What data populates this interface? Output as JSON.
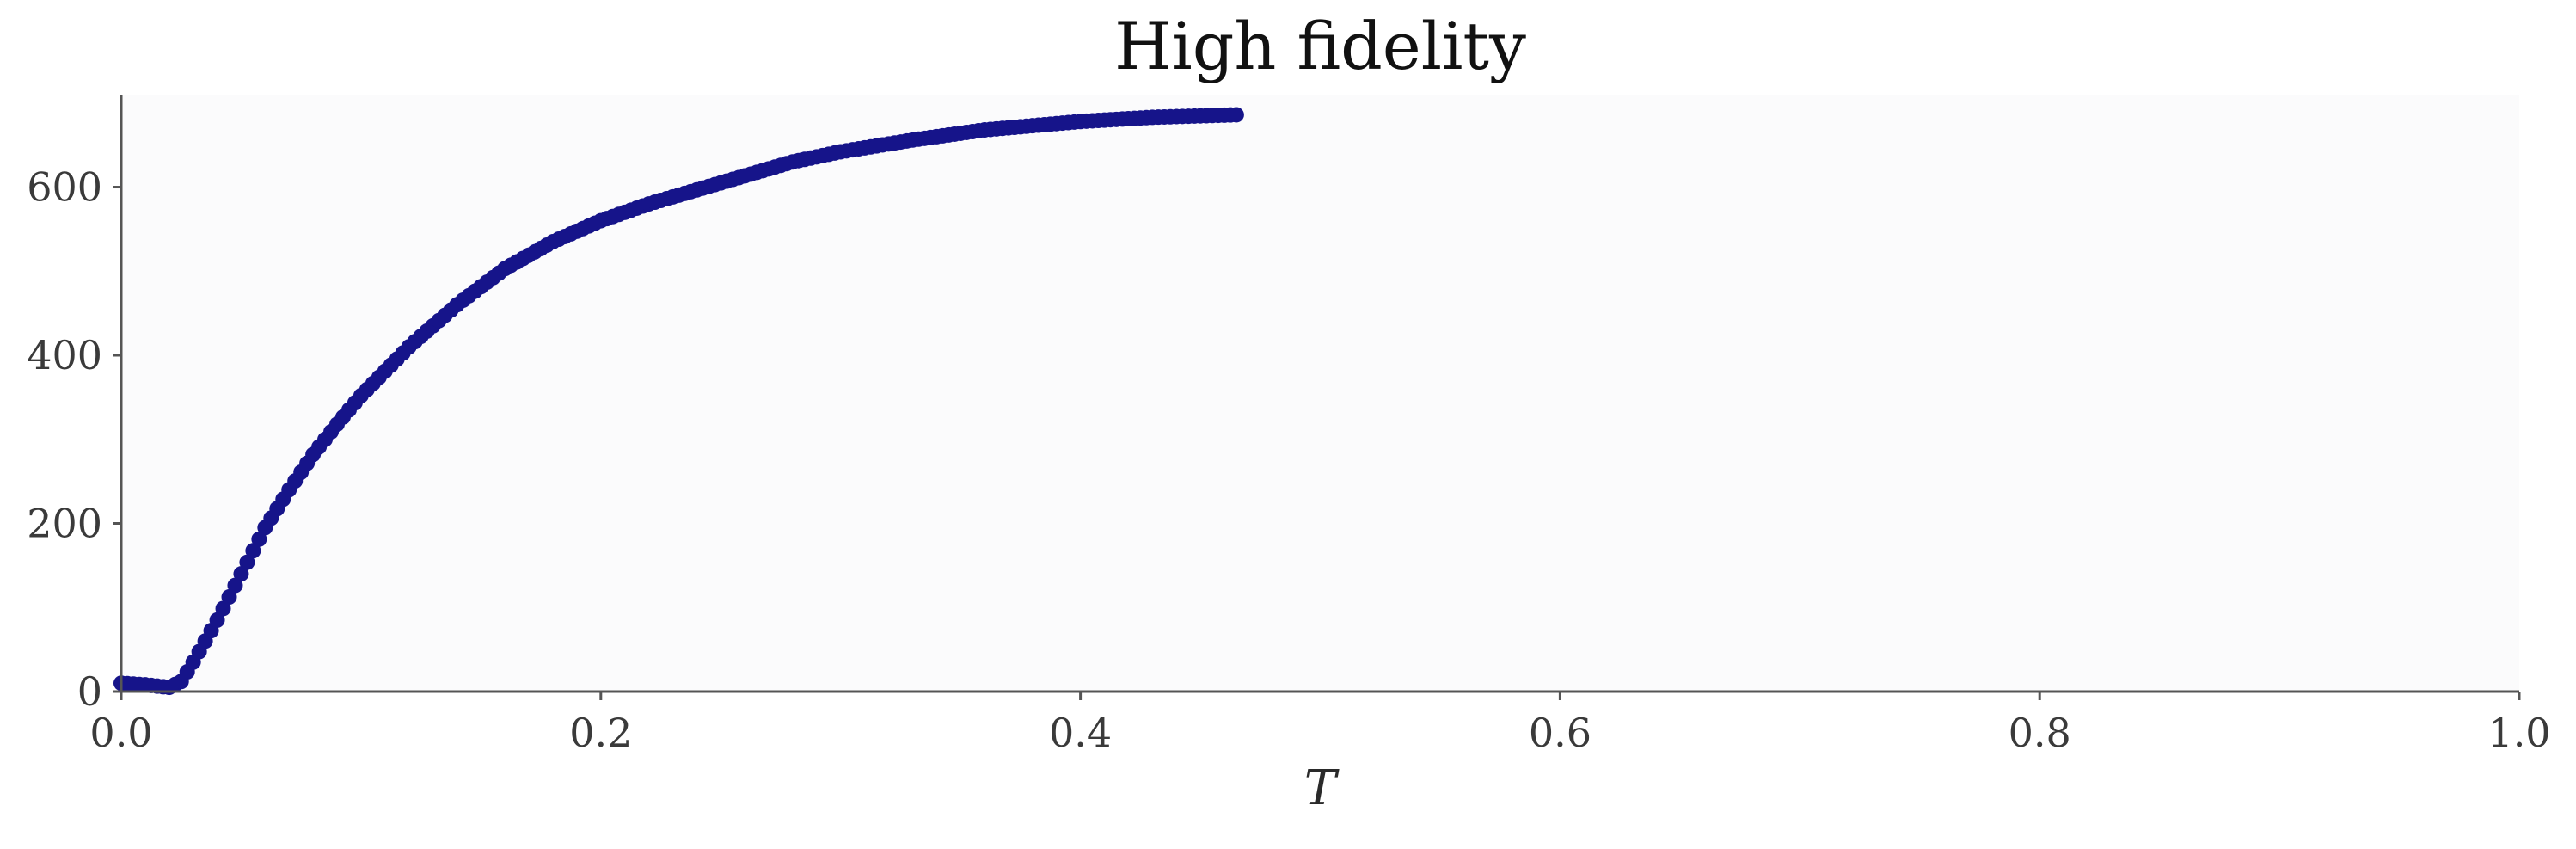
{
  "chart_data": {
    "type": "scatter",
    "title": "High fidelity",
    "xlabel": "T",
    "ylabel": "",
    "xlim": [
      0.0,
      1.0
    ],
    "ylim": [
      0,
      710
    ],
    "xticks": [
      0.0,
      0.2,
      0.4,
      0.6,
      0.8,
      1.0
    ],
    "xtick_labels": [
      "0.0",
      "0.2",
      "0.4",
      "0.6",
      "0.8",
      "1.0"
    ],
    "yticks": [
      0,
      200,
      400,
      600
    ],
    "ytick_labels": [
      "0",
      "200",
      "400",
      "600"
    ],
    "grid": false,
    "colors": {
      "marker": "#16148a",
      "plot_background": "#fbfbfc",
      "axis": "#555555"
    },
    "series": [
      {
        "x_start": 0.0,
        "x_end": 0.465,
        "x_step": 0.0025,
        "anchors": [
          [
            0.0,
            10
          ],
          [
            0.01,
            8
          ],
          [
            0.02,
            5
          ],
          [
            0.025,
            12
          ],
          [
            0.03,
            35
          ],
          [
            0.04,
            85
          ],
          [
            0.05,
            140
          ],
          [
            0.06,
            195
          ],
          [
            0.07,
            240
          ],
          [
            0.08,
            282
          ],
          [
            0.09,
            318
          ],
          [
            0.1,
            352
          ],
          [
            0.12,
            410
          ],
          [
            0.14,
            460
          ],
          [
            0.16,
            503
          ],
          [
            0.18,
            535
          ],
          [
            0.2,
            560
          ],
          [
            0.22,
            580
          ],
          [
            0.25,
            605
          ],
          [
            0.28,
            630
          ],
          [
            0.3,
            642
          ],
          [
            0.33,
            656
          ],
          [
            0.36,
            668
          ],
          [
            0.4,
            678
          ],
          [
            0.43,
            683
          ],
          [
            0.465,
            686
          ]
        ]
      }
    ]
  }
}
